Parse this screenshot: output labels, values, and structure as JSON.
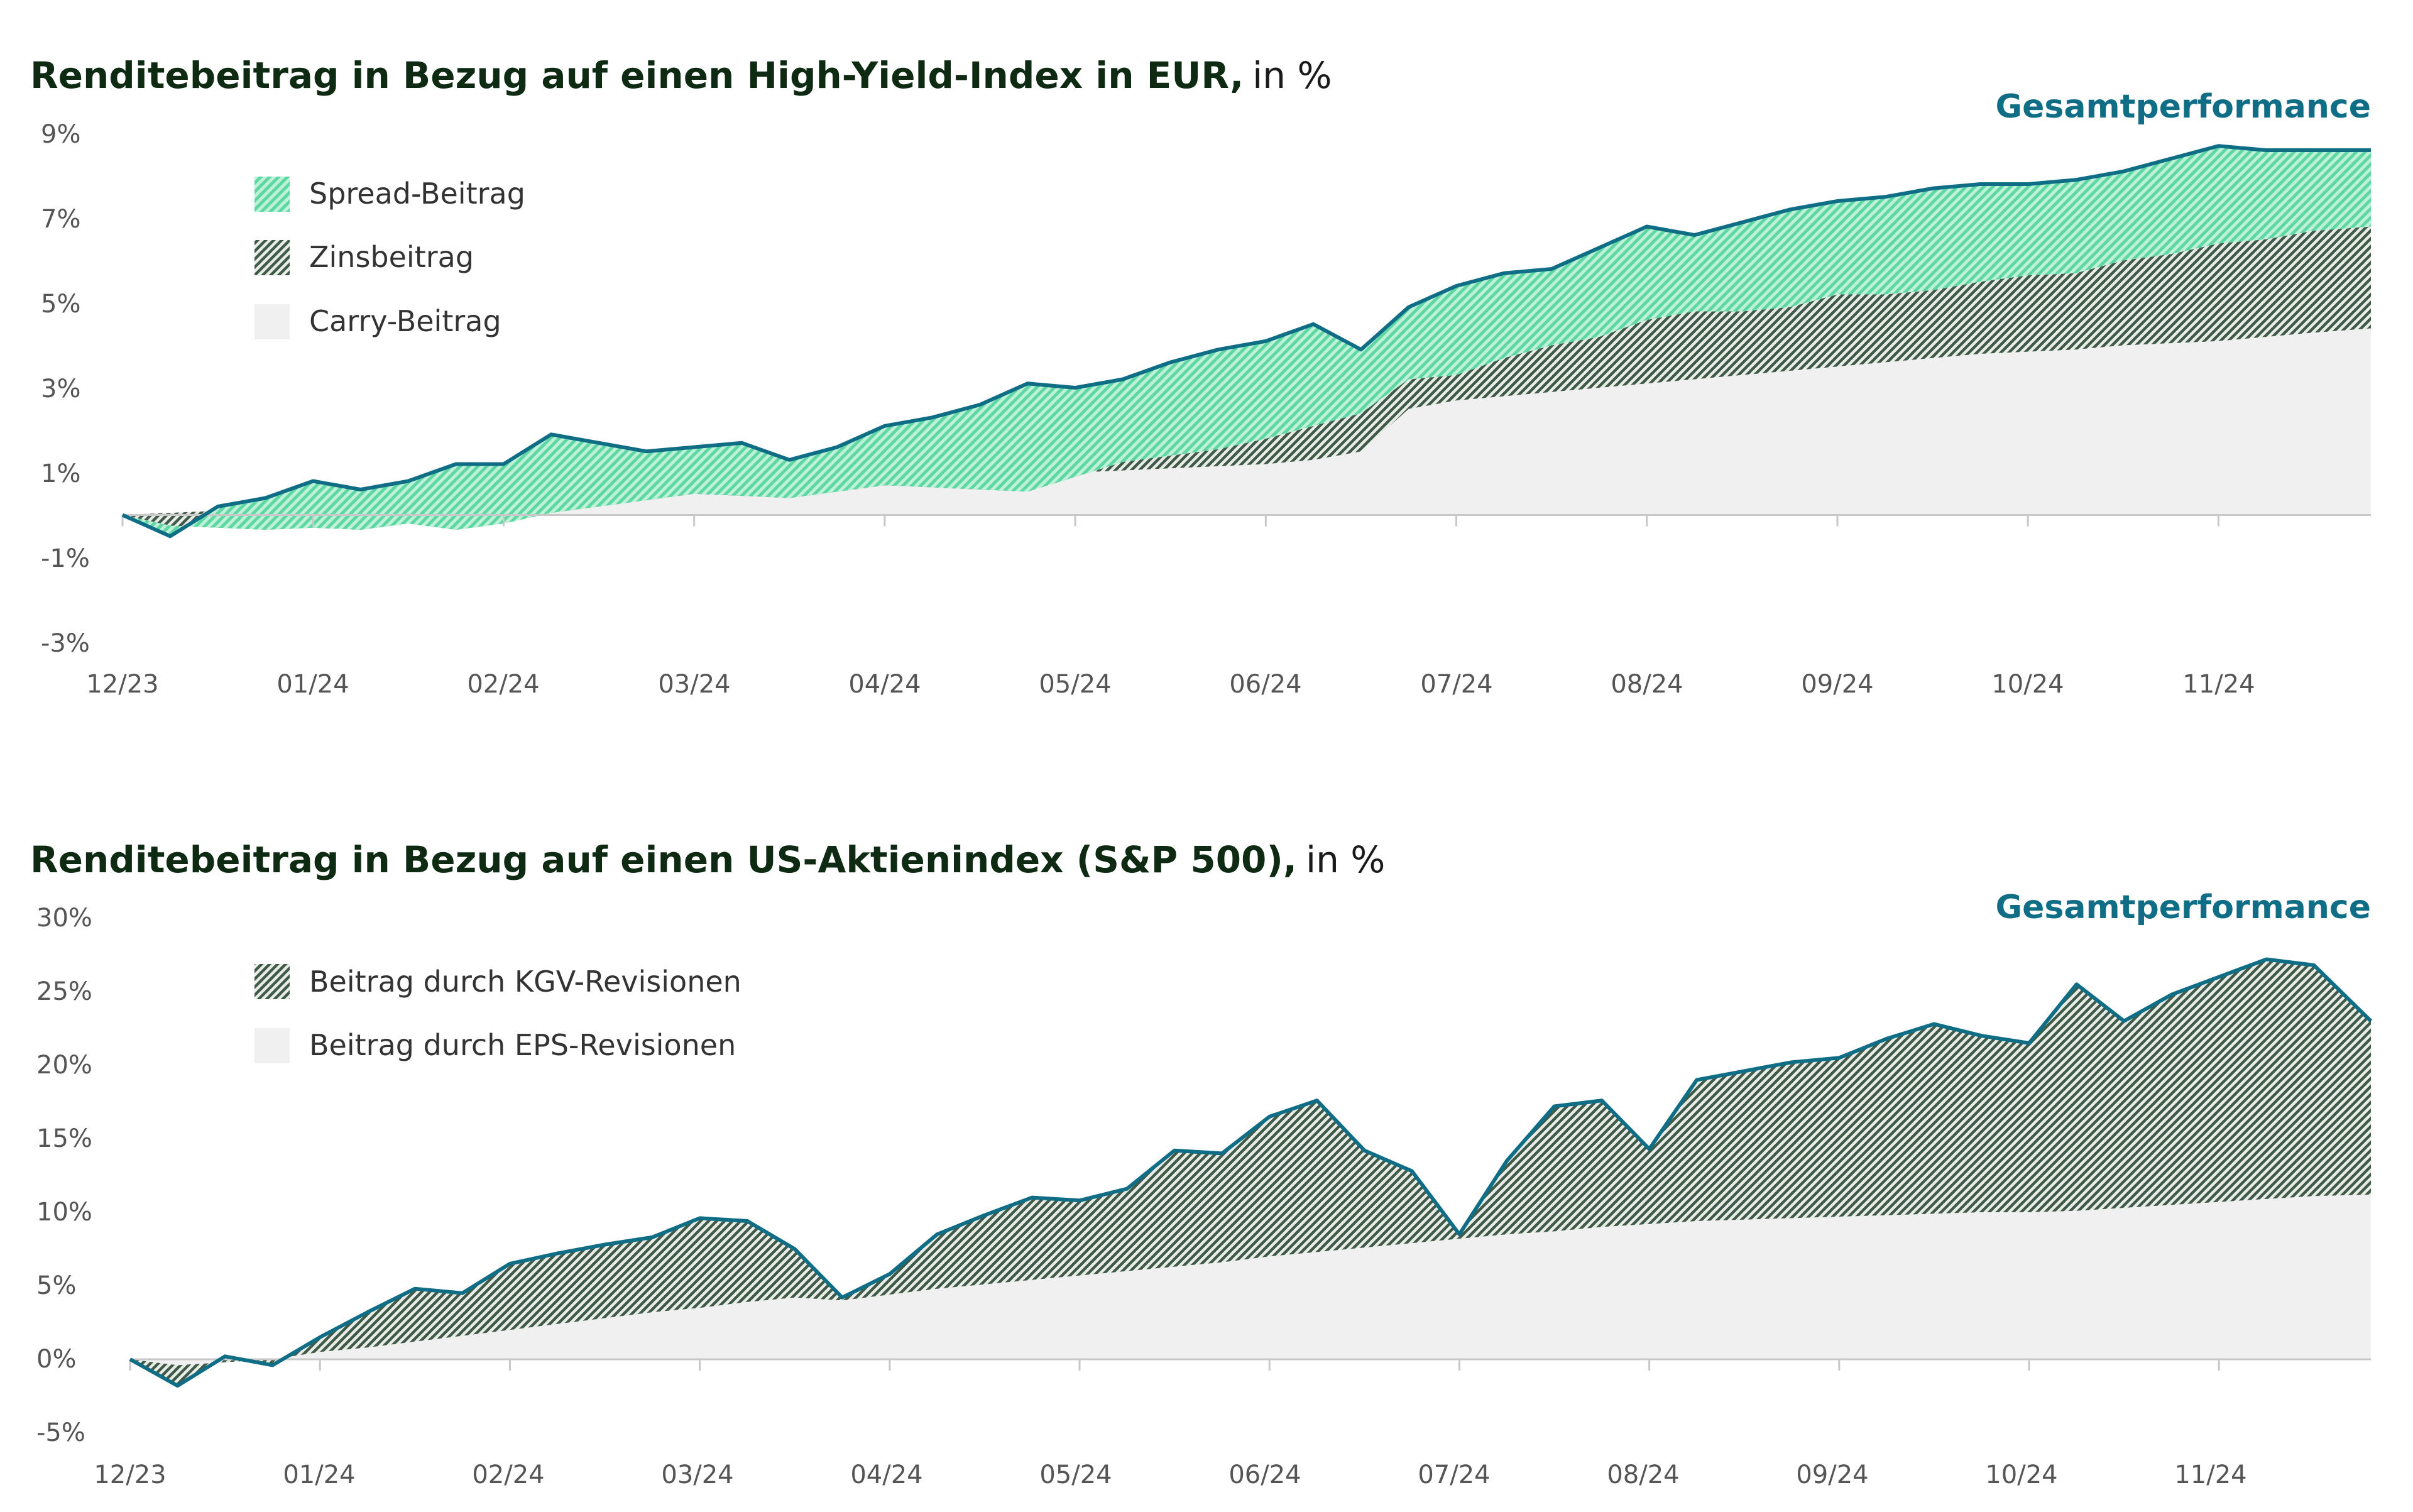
{
  "colors": {
    "title": "#0f2a12",
    "total_line": "#0f6e86",
    "spread_fill": "#7fe3b6",
    "zins_fill": "#3d5a45",
    "carry_fill": "#f0f0f0",
    "axis": "#c8c8c8"
  },
  "chart_data": [
    {
      "type": "area",
      "title": "Renditebeitrag in Bezug auf einen High-Yield-Index in EUR,",
      "unit": "in %",
      "total_label": "Gesamtperformance",
      "x_ticks": [
        "12/23",
        "01/24",
        "02/24",
        "03/24",
        "04/24",
        "05/24",
        "06/24",
        "07/24",
        "08/24",
        "09/24",
        "10/24",
        "11/24"
      ],
      "y_ticks": [
        "9%",
        "7%",
        "5%",
        "3%",
        "1%",
        "-1%",
        "-3%"
      ],
      "y_tick_values": [
        9,
        7,
        5,
        3,
        1,
        -1,
        -3
      ],
      "ylim": [
        -3,
        9
      ],
      "x_range_months": [
        0,
        11.8
      ],
      "legend": [
        {
          "label": "Spread-Beitrag",
          "key": "spread"
        },
        {
          "label": "Zinsbeitrag",
          "key": "zins"
        },
        {
          "label": "Carry-Beitrag",
          "key": "carry"
        }
      ],
      "x": [
        0,
        0.25,
        0.5,
        0.75,
        1.0,
        1.25,
        1.5,
        1.75,
        2.0,
        2.25,
        2.5,
        2.75,
        3.0,
        3.25,
        3.5,
        3.75,
        4.0,
        4.25,
        4.5,
        4.75,
        5.0,
        5.25,
        5.5,
        5.75,
        6.0,
        6.25,
        6.5,
        6.75,
        7.0,
        7.25,
        7.5,
        7.75,
        8.0,
        8.25,
        8.5,
        8.75,
        9.0,
        9.25,
        9.5,
        9.75,
        10.0,
        10.25,
        10.5,
        10.75,
        11.0,
        11.25,
        11.5,
        11.8
      ],
      "series": [
        {
          "name": "Gesamtperformance",
          "values": [
            0,
            -0.5,
            0.2,
            0.4,
            0.8,
            0.6,
            0.8,
            1.2,
            1.2,
            1.9,
            1.7,
            1.5,
            1.6,
            1.7,
            1.3,
            1.6,
            2.1,
            2.3,
            2.6,
            3.1,
            3.0,
            3.2,
            3.6,
            3.9,
            4.1,
            4.5,
            3.9,
            4.9,
            5.4,
            5.7,
            5.8,
            6.3,
            6.8,
            6.6,
            6.9,
            7.2,
            7.4,
            7.5,
            7.7,
            7.8,
            7.8,
            7.9,
            8.1,
            8.4,
            8.7,
            8.6,
            8.6,
            8.6
          ]
        },
        {
          "name": "Carry-Beitrag",
          "values": [
            0,
            0.05,
            0.1,
            0.15,
            0.2,
            0.25,
            0.3,
            0.35,
            0.4,
            0.45,
            0.5,
            0.55,
            0.6,
            0.65,
            0.7,
            0.75,
            0.8,
            0.85,
            0.9,
            0.95,
            1.0,
            1.05,
            1.1,
            1.15,
            1.2,
            1.3,
            1.5,
            2.5,
            2.7,
            2.8,
            2.9,
            3.0,
            3.1,
            3.2,
            3.3,
            3.4,
            3.5,
            3.6,
            3.7,
            3.8,
            3.85,
            3.9,
            4.0,
            4.05,
            4.1,
            4.2,
            4.3,
            4.4
          ]
        },
        {
          "name": "Zinsbeitrag",
          "values": [
            0,
            -0.3,
            -0.4,
            -0.5,
            -0.5,
            -0.6,
            -0.5,
            -0.7,
            -0.6,
            -0.4,
            -0.3,
            -0.2,
            -0.1,
            -0.2,
            -0.3,
            -0.2,
            -0.1,
            -0.2,
            -0.3,
            -0.4,
            -0.1,
            0.2,
            0.3,
            0.4,
            0.6,
            0.8,
            0.9,
            0.7,
            0.6,
            0.9,
            1.1,
            1.2,
            1.5,
            1.6,
            1.5,
            1.5,
            1.7,
            1.6,
            1.6,
            1.7,
            1.8,
            1.8,
            2.0,
            2.1,
            2.3,
            2.3,
            2.4,
            2.4
          ]
        }
      ]
    },
    {
      "type": "area",
      "title": "Renditebeitrag in Bezug auf einen US-Aktienindex (S&P 500),",
      "unit": "in %",
      "total_label": "Gesamtperformance",
      "x_ticks": [
        "12/23",
        "01/24",
        "02/24",
        "03/24",
        "04/24",
        "05/24",
        "06/24",
        "07/24",
        "08/24",
        "09/24",
        "10/24",
        "11/24"
      ],
      "y_ticks": [
        "30%",
        "25%",
        "20%",
        "15%",
        "10%",
        "5%",
        "0%",
        "-5%"
      ],
      "y_tick_values": [
        30,
        25,
        20,
        15,
        10,
        5,
        0,
        -5
      ],
      "ylim": [
        -5,
        30
      ],
      "x_range_months": [
        0,
        11.8
      ],
      "legend": [
        {
          "label": "Beitrag durch KGV-Revisionen",
          "key": "kgv"
        },
        {
          "label": "Beitrag durch EPS-Revisionen",
          "key": "eps"
        }
      ],
      "x": [
        0,
        0.25,
        0.5,
        0.75,
        1.0,
        1.25,
        1.5,
        1.75,
        2.0,
        2.25,
        2.5,
        2.75,
        3.0,
        3.25,
        3.5,
        3.75,
        4.0,
        4.25,
        4.5,
        4.75,
        5.0,
        5.25,
        5.5,
        5.75,
        6.0,
        6.25,
        6.5,
        6.75,
        7.0,
        7.25,
        7.5,
        7.75,
        8.0,
        8.25,
        8.5,
        8.75,
        9.0,
        9.25,
        9.5,
        9.75,
        10.0,
        10.25,
        10.5,
        10.75,
        11.0,
        11.25,
        11.5,
        11.8
      ],
      "series": [
        {
          "name": "Gesamtperformance",
          "values": [
            0,
            -1.8,
            0.2,
            -0.4,
            1.5,
            3.2,
            4.8,
            4.5,
            6.5,
            7.2,
            7.8,
            8.3,
            9.6,
            9.4,
            7.5,
            4.2,
            5.8,
            8.5,
            9.8,
            11.0,
            10.8,
            11.6,
            14.2,
            14.0,
            16.5,
            17.6,
            14.2,
            12.8,
            8.5,
            13.5,
            17.2,
            17.6,
            14.3,
            19.0,
            19.6,
            20.2,
            20.5,
            21.8,
            22.8,
            22.0,
            21.5,
            25.5,
            23.0,
            24.8,
            26.0,
            27.2,
            26.8,
            23.0
          ]
        },
        {
          "name": "Beitrag durch EPS-Revisionen",
          "values": [
            0,
            -0.4,
            -0.2,
            0,
            0.5,
            0.8,
            1.2,
            1.6,
            2.0,
            2.4,
            2.8,
            3.2,
            3.5,
            3.9,
            4.2,
            4.0,
            4.4,
            4.8,
            5.1,
            5.4,
            5.7,
            6.0,
            6.3,
            6.6,
            7.0,
            7.3,
            7.6,
            7.9,
            8.2,
            8.5,
            8.7,
            9.0,
            9.2,
            9.4,
            9.5,
            9.6,
            9.7,
            9.8,
            9.9,
            10.0,
            10.0,
            10.1,
            10.3,
            10.5,
            10.7,
            10.9,
            11.1,
            11.2
          ]
        }
      ]
    }
  ]
}
